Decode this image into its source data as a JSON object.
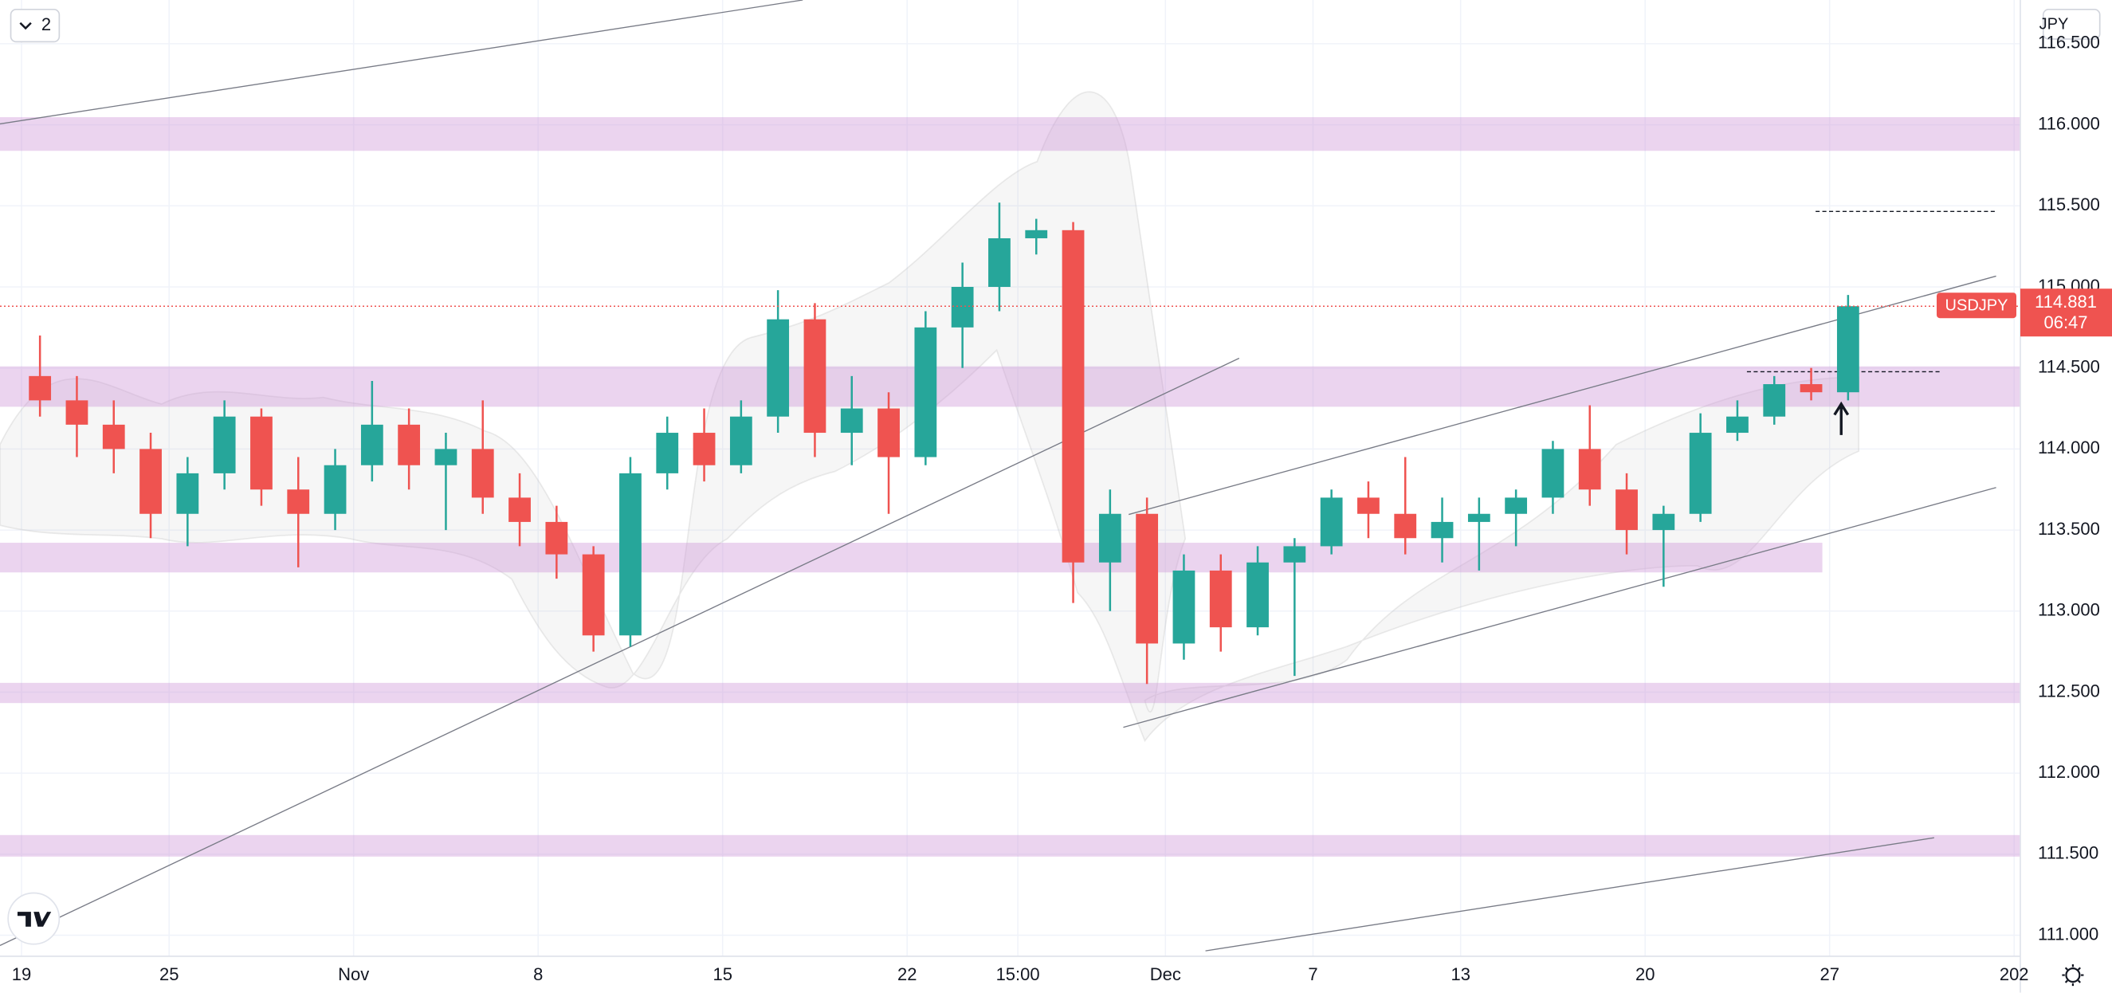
{
  "chart_data": {
    "type": "candlestick",
    "symbol": "USDJPY",
    "currency": "JPY",
    "badge": "2",
    "countdown": "06:47",
    "last_price": 114.881,
    "categories": [
      "19",
      null,
      null,
      null,
      "25",
      null,
      null,
      null,
      null,
      "Nov",
      null,
      null,
      null,
      null,
      "8",
      null,
      null,
      null,
      null,
      "15",
      null,
      null,
      null,
      null,
      "22",
      null,
      null,
      "15:00",
      null,
      null,
      null,
      "Dec",
      null,
      null,
      null,
      "7",
      null,
      null,
      null,
      "13",
      null,
      null,
      null,
      null,
      "20",
      null,
      null,
      null,
      null,
      "27",
      null,
      null,
      null,
      null,
      "202"
    ],
    "open": [
      114.45,
      114.3,
      114.15,
      114.0,
      113.6,
      113.85,
      114.2,
      113.75,
      113.6,
      113.9,
      114.15,
      113.9,
      114.0,
      113.7,
      113.55,
      113.35,
      112.85,
      113.85,
      114.1,
      113.9,
      114.2,
      114.8,
      114.1,
      114.25,
      113.95,
      114.75,
      115.0,
      115.3,
      115.35,
      113.3,
      113.6,
      112.8,
      113.25,
      112.9,
      113.3,
      113.4,
      113.7,
      113.6,
      113.45,
      113.55,
      113.6,
      113.7,
      114.0,
      113.75,
      113.5,
      113.6,
      114.1,
      114.2,
      114.4,
      114.35,
      null,
      null,
      null,
      null,
      null
    ],
    "high": [
      114.7,
      114.45,
      114.3,
      114.1,
      113.95,
      114.3,
      114.25,
      113.95,
      114.0,
      114.42,
      114.25,
      114.1,
      114.3,
      113.85,
      113.65,
      113.4,
      113.95,
      114.2,
      114.25,
      114.3,
      114.98,
      114.9,
      114.45,
      114.35,
      114.85,
      115.15,
      115.52,
      115.42,
      115.4,
      113.75,
      113.7,
      113.35,
      113.35,
      113.4,
      113.45,
      113.75,
      113.8,
      113.95,
      113.7,
      113.7,
      113.75,
      114.05,
      114.27,
      113.85,
      113.65,
      114.22,
      114.3,
      114.45,
      114.5,
      114.95,
      null,
      null,
      null,
      null,
      null
    ],
    "low": [
      114.2,
      113.95,
      113.85,
      113.45,
      113.4,
      113.75,
      113.65,
      113.27,
      113.5,
      113.8,
      113.75,
      113.5,
      113.6,
      113.4,
      113.2,
      112.75,
      112.78,
      113.75,
      113.8,
      113.85,
      114.1,
      113.95,
      113.9,
      113.6,
      113.9,
      114.5,
      114.85,
      115.2,
      113.05,
      113.0,
      112.55,
      112.7,
      112.75,
      112.85,
      112.6,
      113.35,
      113.45,
      113.35,
      113.3,
      113.25,
      113.4,
      113.6,
      113.65,
      113.35,
      113.15,
      113.55,
      114.05,
      114.15,
      114.3,
      114.3,
      null,
      null,
      null,
      null,
      null
    ],
    "close": [
      114.3,
      114.15,
      114.0,
      113.6,
      113.85,
      114.2,
      113.75,
      113.6,
      113.9,
      114.15,
      113.9,
      114.0,
      113.7,
      113.55,
      113.35,
      112.85,
      113.85,
      114.1,
      113.9,
      114.2,
      114.8,
      114.1,
      114.25,
      113.95,
      114.75,
      115.0,
      115.3,
      115.35,
      113.3,
      113.6,
      112.8,
      113.25,
      112.9,
      113.3,
      113.4,
      113.7,
      113.6,
      113.45,
      113.55,
      113.6,
      113.7,
      114.0,
      113.75,
      113.5,
      113.6,
      114.1,
      114.2,
      114.4,
      114.35,
      114.881,
      null,
      null,
      null,
      null,
      null
    ],
    "up_color": "#26a69a",
    "down_color": "#ef5350",
    "ylim": [
      110.87,
      116.77
    ],
    "yticks": [
      {
        "value": 111.0,
        "label": "111.000"
      },
      {
        "value": 111.5,
        "label": "111.500"
      },
      {
        "value": 112.0,
        "label": "112.000"
      },
      {
        "value": 112.5,
        "label": "112.500"
      },
      {
        "value": 113.0,
        "label": "113.000"
      },
      {
        "value": 113.5,
        "label": "113.500"
      },
      {
        "value": 114.0,
        "label": "114.000"
      },
      {
        "value": 114.5,
        "label": "114.500"
      },
      {
        "value": 115.0,
        "label": "115.000"
      },
      {
        "value": 115.5,
        "label": "115.500"
      },
      {
        "value": 116.0,
        "label": "116.000"
      },
      {
        "value": 116.5,
        "label": "116.500"
      }
    ],
    "grid": true
  }
}
